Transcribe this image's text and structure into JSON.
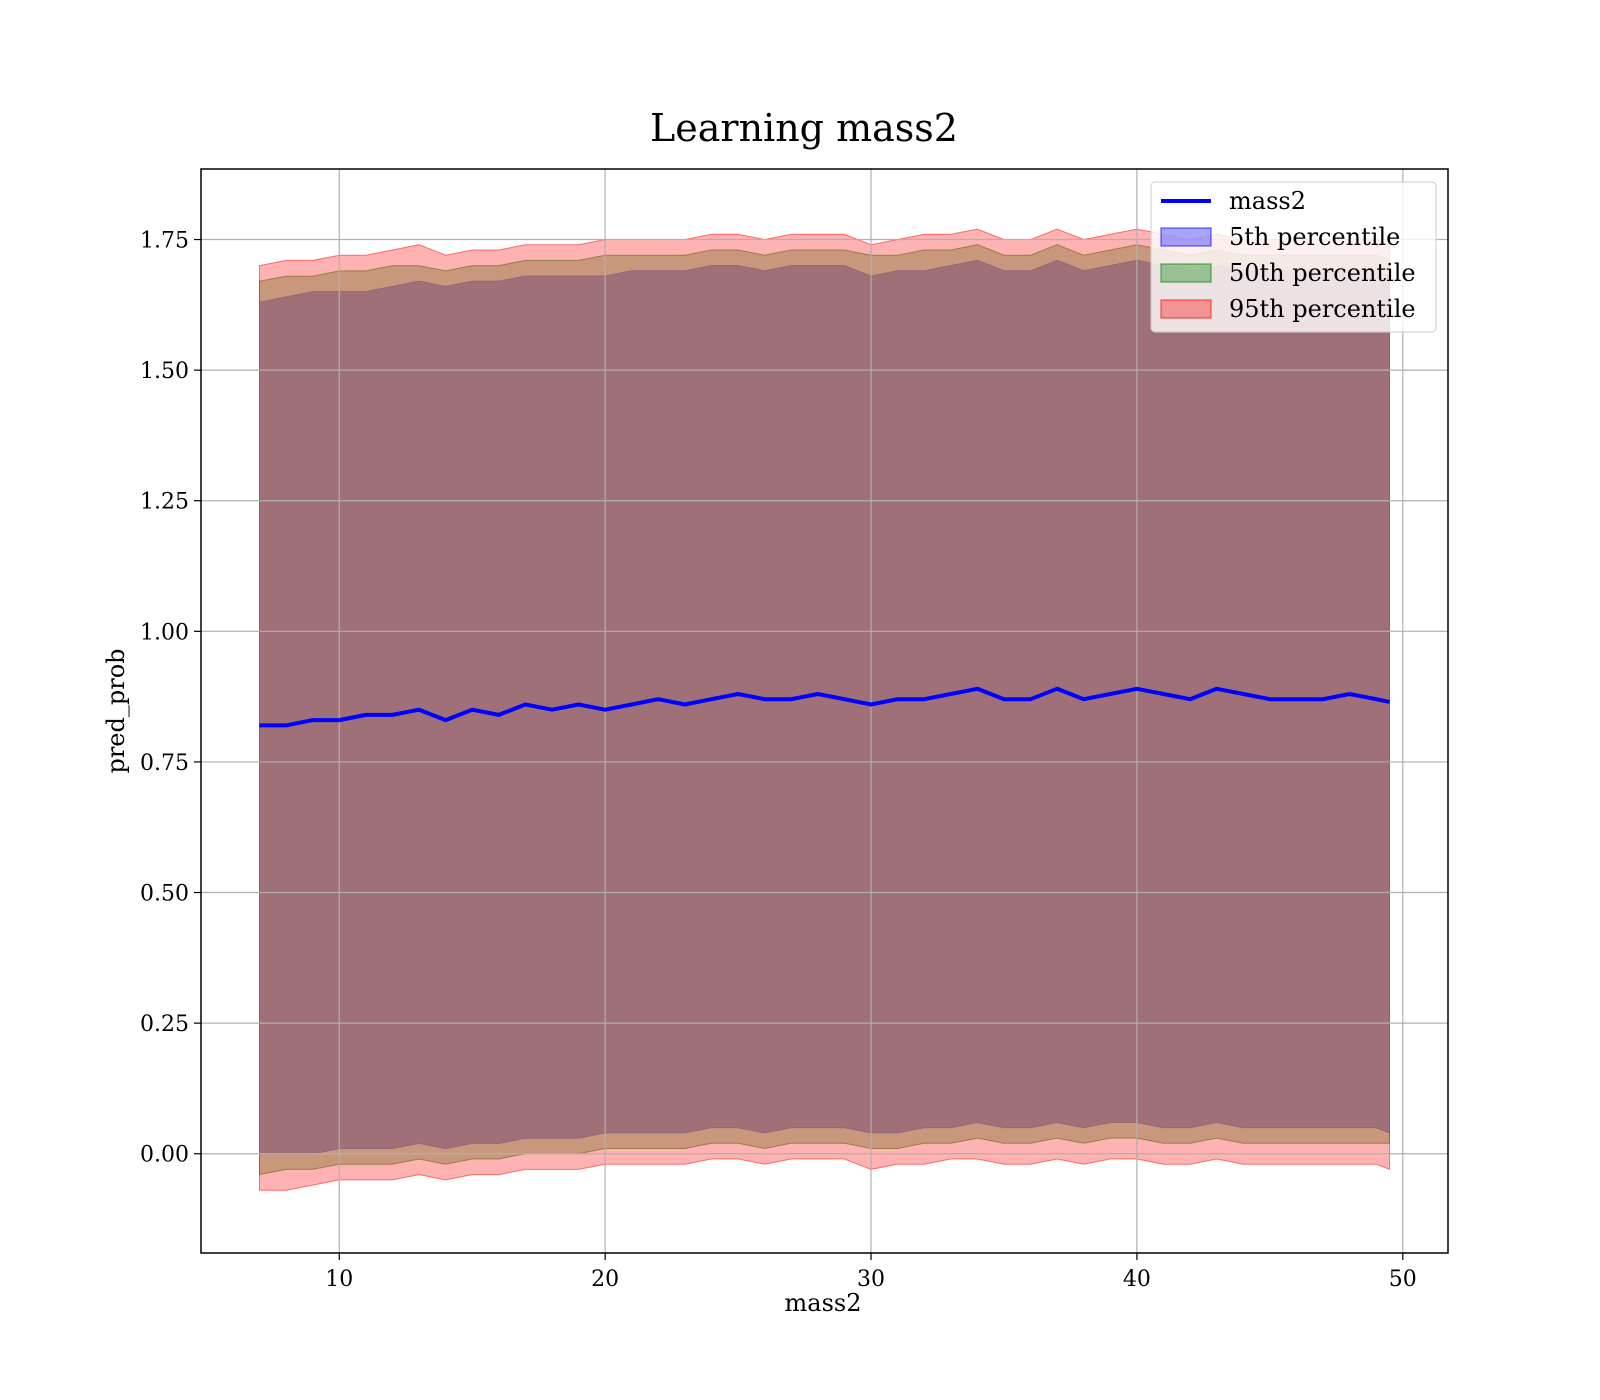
{
  "chart_data": {
    "type": "line",
    "title": "Learning mass2",
    "xlabel": "mass2",
    "ylabel": "pred_prob",
    "xlim": [
      4.8,
      51.7
    ],
    "ylim": [
      -0.19,
      1.885
    ],
    "x_ticks": [
      10,
      20,
      30,
      40,
      50
    ],
    "x_tick_labels": [
      "10",
      "20",
      "30",
      "40",
      "50"
    ],
    "y_ticks": [
      0.0,
      0.25,
      0.5,
      0.75,
      1.0,
      1.25,
      1.5,
      1.75
    ],
    "y_tick_labels": [
      "0.00",
      "0.25",
      "0.50",
      "0.75",
      "1.00",
      "1.25",
      "1.50",
      "1.75"
    ],
    "grid": true,
    "legend_position": "top-right",
    "legend": [
      "mass2",
      "5th percentile",
      "50th percentile",
      "95th percentile"
    ],
    "colors": {
      "line": "#0000ff",
      "band_5th": "#0000ff",
      "band_50th": "#008000",
      "band_95th": "#ff0000",
      "combined_fill": "#a07078"
    },
    "series": [
      {
        "name": "mass2",
        "kind": "line",
        "x": [
          7.0,
          8.0,
          9.0,
          10.0,
          11.0,
          12.0,
          13.0,
          14.0,
          15.0,
          16.0,
          17.0,
          18.0,
          19.0,
          20.0,
          21.0,
          22.0,
          23.0,
          24.0,
          25.0,
          26.0,
          27.0,
          28.0,
          29.0,
          30.0,
          31.0,
          32.0,
          33.0,
          34.0,
          35.0,
          36.0,
          37.0,
          38.0,
          39.0,
          40.0,
          41.0,
          42.0,
          43.0,
          44.0,
          45.0,
          46.0,
          47.0,
          48.0,
          49.0,
          49.5
        ],
        "y": [
          0.82,
          0.82,
          0.83,
          0.83,
          0.84,
          0.84,
          0.85,
          0.83,
          0.85,
          0.84,
          0.86,
          0.85,
          0.86,
          0.85,
          0.86,
          0.87,
          0.86,
          0.87,
          0.88,
          0.87,
          0.87,
          0.88,
          0.87,
          0.86,
          0.87,
          0.87,
          0.88,
          0.89,
          0.87,
          0.87,
          0.89,
          0.87,
          0.88,
          0.89,
          0.88,
          0.87,
          0.89,
          0.88,
          0.87,
          0.87,
          0.87,
          0.88,
          0.87,
          0.865
        ]
      },
      {
        "name": "5th percentile",
        "kind": "band",
        "x": [
          7.0,
          8.0,
          9.0,
          10.0,
          11.0,
          12.0,
          13.0,
          14.0,
          15.0,
          16.0,
          17.0,
          18.0,
          19.0,
          20.0,
          21.0,
          22.0,
          23.0,
          24.0,
          25.0,
          26.0,
          27.0,
          28.0,
          29.0,
          30.0,
          31.0,
          32.0,
          33.0,
          34.0,
          35.0,
          36.0,
          37.0,
          38.0,
          39.0,
          40.0,
          41.0,
          42.0,
          43.0,
          44.0,
          45.0,
          46.0,
          47.0,
          48.0,
          49.0,
          49.5
        ],
        "lower": [
          0.0,
          0.0,
          0.0,
          0.01,
          0.01,
          0.01,
          0.02,
          0.01,
          0.02,
          0.02,
          0.03,
          0.03,
          0.03,
          0.04,
          0.04,
          0.04,
          0.04,
          0.05,
          0.05,
          0.04,
          0.05,
          0.05,
          0.05,
          0.04,
          0.04,
          0.05,
          0.05,
          0.06,
          0.05,
          0.05,
          0.06,
          0.05,
          0.06,
          0.06,
          0.05,
          0.05,
          0.06,
          0.05,
          0.05,
          0.05,
          0.05,
          0.05,
          0.05,
          0.04
        ],
        "upper": [
          1.63,
          1.64,
          1.65,
          1.65,
          1.65,
          1.66,
          1.67,
          1.66,
          1.67,
          1.67,
          1.68,
          1.68,
          1.68,
          1.68,
          1.69,
          1.69,
          1.69,
          1.7,
          1.7,
          1.69,
          1.7,
          1.7,
          1.7,
          1.68,
          1.69,
          1.69,
          1.7,
          1.71,
          1.69,
          1.69,
          1.71,
          1.69,
          1.7,
          1.71,
          1.7,
          1.69,
          1.7,
          1.69,
          1.69,
          1.69,
          1.69,
          1.69,
          1.69,
          1.68
        ]
      },
      {
        "name": "50th percentile",
        "kind": "band",
        "x": [
          7.0,
          8.0,
          9.0,
          10.0,
          11.0,
          12.0,
          13.0,
          14.0,
          15.0,
          16.0,
          17.0,
          18.0,
          19.0,
          20.0,
          21.0,
          22.0,
          23.0,
          24.0,
          25.0,
          26.0,
          27.0,
          28.0,
          29.0,
          30.0,
          31.0,
          32.0,
          33.0,
          34.0,
          35.0,
          36.0,
          37.0,
          38.0,
          39.0,
          40.0,
          41.0,
          42.0,
          43.0,
          44.0,
          45.0,
          46.0,
          47.0,
          48.0,
          49.0,
          49.5
        ],
        "lower": [
          -0.04,
          -0.03,
          -0.03,
          -0.02,
          -0.02,
          -0.02,
          -0.01,
          -0.02,
          -0.01,
          -0.01,
          0.0,
          0.0,
          0.0,
          0.01,
          0.01,
          0.01,
          0.01,
          0.02,
          0.02,
          0.01,
          0.02,
          0.02,
          0.02,
          0.01,
          0.01,
          0.02,
          0.02,
          0.03,
          0.02,
          0.02,
          0.03,
          0.02,
          0.03,
          0.03,
          0.02,
          0.02,
          0.03,
          0.02,
          0.02,
          0.02,
          0.02,
          0.02,
          0.02,
          0.02
        ],
        "upper": [
          1.67,
          1.68,
          1.68,
          1.69,
          1.69,
          1.7,
          1.7,
          1.69,
          1.7,
          1.7,
          1.71,
          1.71,
          1.71,
          1.72,
          1.72,
          1.72,
          1.72,
          1.73,
          1.73,
          1.72,
          1.73,
          1.73,
          1.73,
          1.72,
          1.72,
          1.73,
          1.73,
          1.74,
          1.72,
          1.72,
          1.74,
          1.72,
          1.73,
          1.74,
          1.73,
          1.72,
          1.73,
          1.72,
          1.72,
          1.72,
          1.72,
          1.72,
          1.72,
          1.71
        ]
      },
      {
        "name": "95th percentile",
        "kind": "band",
        "x": [
          7.0,
          8.0,
          9.0,
          10.0,
          11.0,
          12.0,
          13.0,
          14.0,
          15.0,
          16.0,
          17.0,
          18.0,
          19.0,
          20.0,
          21.0,
          22.0,
          23.0,
          24.0,
          25.0,
          26.0,
          27.0,
          28.0,
          29.0,
          30.0,
          31.0,
          32.0,
          33.0,
          34.0,
          35.0,
          36.0,
          37.0,
          38.0,
          39.0,
          40.0,
          41.0,
          42.0,
          43.0,
          44.0,
          45.0,
          46.0,
          47.0,
          48.0,
          49.0,
          49.5
        ],
        "lower": [
          -0.07,
          -0.07,
          -0.06,
          -0.05,
          -0.05,
          -0.05,
          -0.04,
          -0.05,
          -0.04,
          -0.04,
          -0.03,
          -0.03,
          -0.03,
          -0.02,
          -0.02,
          -0.02,
          -0.02,
          -0.01,
          -0.01,
          -0.02,
          -0.01,
          -0.01,
          -0.01,
          -0.03,
          -0.02,
          -0.02,
          -0.01,
          -0.01,
          -0.02,
          -0.02,
          -0.01,
          -0.02,
          -0.01,
          -0.01,
          -0.02,
          -0.02,
          -0.01,
          -0.02,
          -0.02,
          -0.02,
          -0.02,
          -0.02,
          -0.02,
          -0.03
        ],
        "upper": [
          1.7,
          1.71,
          1.71,
          1.72,
          1.72,
          1.73,
          1.74,
          1.72,
          1.73,
          1.73,
          1.74,
          1.74,
          1.74,
          1.75,
          1.75,
          1.75,
          1.75,
          1.76,
          1.76,
          1.75,
          1.76,
          1.76,
          1.76,
          1.74,
          1.75,
          1.76,
          1.76,
          1.77,
          1.75,
          1.75,
          1.77,
          1.75,
          1.76,
          1.77,
          1.76,
          1.75,
          1.76,
          1.75,
          1.75,
          1.75,
          1.75,
          1.75,
          1.75,
          1.74
        ]
      }
    ]
  }
}
